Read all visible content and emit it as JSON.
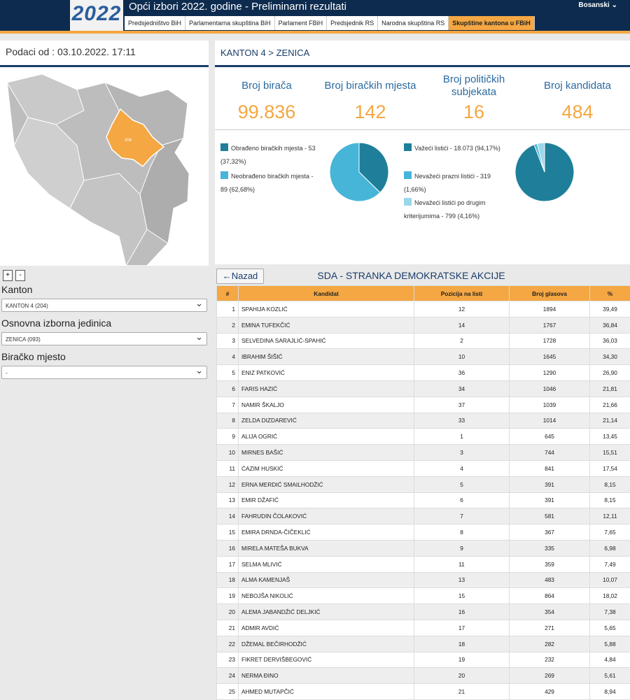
{
  "header": {
    "logo": "2022",
    "title": "Opći izbori 2022. godine - Preliminarni rezultati",
    "language": "Bosanski",
    "tabs": [
      "Predsjedništvo BiH",
      "Parlamentarna skupština BiH",
      "Parlament FBiH",
      "Predsjednik RS",
      "Narodna skupština RS",
      "Skupštine kantona u FBiH"
    ],
    "active_tab": 5
  },
  "sidebar": {
    "data_date": "Podaci od : 03.10.2022. 17:11",
    "map_label": "204",
    "zoom": [
      "+",
      "-"
    ],
    "filters": [
      {
        "label": "Kanton",
        "value": "KANTON 4 (204)"
      },
      {
        "label": "Osnovna izborna jedinica",
        "value": "ZENICA (093)"
      },
      {
        "label": "Biračko mjesto",
        "value": "-"
      }
    ]
  },
  "breadcrumb": "KANTON 4 > ZENICA",
  "stats": [
    {
      "label": "Broj birača",
      "value": "99.836"
    },
    {
      "label": "Broj biračkih mjesta",
      "value": "142"
    },
    {
      "label": "Broj političkih subjekata",
      "value": "16"
    },
    {
      "label": "Broj kandidata",
      "value": "484"
    }
  ],
  "polling_stations": {
    "items": [
      {
        "label": "Obrađeno biračkih mjesta -",
        "value": 53,
        "percent": "(37,32%)",
        "color": "#1f7f9a"
      },
      {
        "label": "Neobrađeno biračkih mjesta -",
        "value": 89,
        "percent": "(62,68%)",
        "color": "#47b5d8"
      }
    ]
  },
  "ballots": {
    "items": [
      {
        "label": "Važeći listići -",
        "value": 18073,
        "value_label": "18.073",
        "percent": "(94,17%)",
        "color": "#1f7f9a"
      },
      {
        "label": "Nevažeći prazni listići -",
        "value": 319,
        "percent": "(1,66%)",
        "color": "#47b5d8"
      },
      {
        "label": "Nevažeći listići po drugim kriterijumima -",
        "value": 799,
        "percent": "(4,16%)",
        "color": "#9ad7ea"
      }
    ]
  },
  "party": {
    "back": "Nazad",
    "title": "SDA - STRANKA DEMOKRATSKE AKCIJE"
  },
  "table": {
    "columns": [
      "#",
      "Kandidat",
      "Pozicija na listi",
      "Broj glasova",
      "%"
    ],
    "rows": [
      [
        1,
        "SPAHIJA KOZLIĆ",
        12,
        1894,
        "39,49"
      ],
      [
        2,
        "EMINA TUFEKČIĆ",
        14,
        1767,
        "36,84"
      ],
      [
        3,
        "SELVEDINA SARAJLIĆ-SPAHIĆ",
        2,
        1728,
        "36,03"
      ],
      [
        4,
        "IBRAHIM ŠIŠIĆ",
        10,
        1645,
        "34,30"
      ],
      [
        5,
        "ENIZ PATKOVIĆ",
        36,
        1290,
        "26,90"
      ],
      [
        6,
        "FARIS HAZIĆ",
        34,
        1046,
        "21,81"
      ],
      [
        7,
        "NAMIR ŠKALJO",
        37,
        1039,
        "21,66"
      ],
      [
        8,
        "ZELDA DIZDAREVIĆ",
        33,
        1014,
        "21,14"
      ],
      [
        9,
        "ALIJA OGRIĆ",
        1,
        645,
        "13,45"
      ],
      [
        10,
        "MIRNES BAŠIĆ",
        3,
        744,
        "15,51"
      ],
      [
        11,
        "ĆAZIM HUSKIĆ",
        4,
        841,
        "17,54"
      ],
      [
        12,
        "ERNA MERDIĆ SMAILHODŽIĆ",
        5,
        391,
        "8,15"
      ],
      [
        13,
        "EMIR DŽAFIĆ",
        6,
        391,
        "8,15"
      ],
      [
        14,
        "FAHRUDIN ČOLAKOVIĆ",
        7,
        581,
        "12,11"
      ],
      [
        15,
        "EMIRA DRNDA-ČIČEKLIĆ",
        8,
        367,
        "7,65"
      ],
      [
        16,
        "MIRELA MATEŠA BUKVA",
        9,
        335,
        "6,98"
      ],
      [
        17,
        "SELMA MLIVIĆ",
        11,
        359,
        "7,49"
      ],
      [
        18,
        "ALMA KAMENJAŠ",
        13,
        483,
        "10,07"
      ],
      [
        19,
        "NEBOJŠA NIKOLIĆ",
        15,
        864,
        "18,02"
      ],
      [
        20,
        "ALEMA JABANDŽIĆ DELJKIĆ",
        16,
        354,
        "7,38"
      ],
      [
        21,
        "ADMIR AVDIĆ",
        17,
        271,
        "5,65"
      ],
      [
        22,
        "DŽEMAL BEČIRHODŽIĆ",
        18,
        282,
        "5,88"
      ],
      [
        23,
        "FIKRET DERVIŠBEGOVIĆ",
        19,
        232,
        "4,84"
      ],
      [
        24,
        "NERMA ĐINO",
        20,
        269,
        "5,61"
      ],
      [
        25,
        "AHMED MUTAPČIĆ",
        21,
        429,
        "8,94"
      ]
    ]
  }
}
